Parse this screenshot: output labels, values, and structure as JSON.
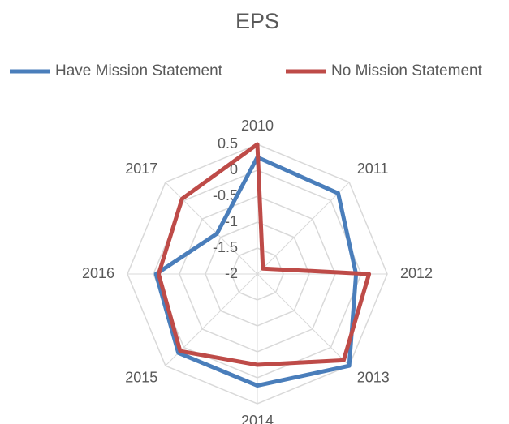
{
  "chart_data": {
    "type": "radar",
    "title": "EPS",
    "categories": [
      "2010",
      "2011",
      "2012",
      "2013",
      "2014",
      "2015",
      "2016",
      "2017"
    ],
    "series": [
      {
        "name": "Have Mission Statement",
        "color": "#4a7ebb",
        "values": [
          0.25,
          0.2,
          -0.1,
          0.5,
          0.15,
          0.15,
          -0.05,
          -0.9
        ]
      },
      {
        "name": "No Mission Statement",
        "color": "#be4b48",
        "values": [
          0.5,
          -1.85,
          0.15,
          0.35,
          -0.25,
          0.1,
          -0.1,
          0.05
        ]
      }
    ],
    "ylim": [
      -2,
      0.5
    ],
    "yticks": [
      0.5,
      0,
      -0.5,
      -1,
      -1.5,
      -2
    ],
    "grid": true,
    "legend": "top"
  }
}
